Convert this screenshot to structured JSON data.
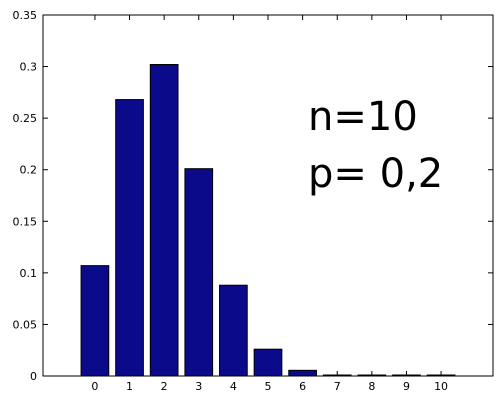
{
  "chart_data": {
    "type": "bar",
    "categories": [
      "0",
      "1",
      "2",
      "3",
      "4",
      "5",
      "6",
      "7",
      "8",
      "9",
      "10"
    ],
    "values": [
      0.107,
      0.268,
      0.302,
      0.201,
      0.088,
      0.026,
      0.0055,
      0.0008,
      0.0001,
      0.0,
      0.0
    ],
    "ylim": [
      0,
      0.35
    ],
    "yticks": [
      "0",
      "0.05",
      "0.1",
      "0.15",
      "0.2",
      "0.25",
      "0.3",
      "0.35"
    ],
    "xlim": [
      -1.5,
      11.5
    ],
    "grid": false,
    "bar_color": "#0a0a8a",
    "annotations": [
      "n=10",
      "p= 0,2"
    ]
  }
}
